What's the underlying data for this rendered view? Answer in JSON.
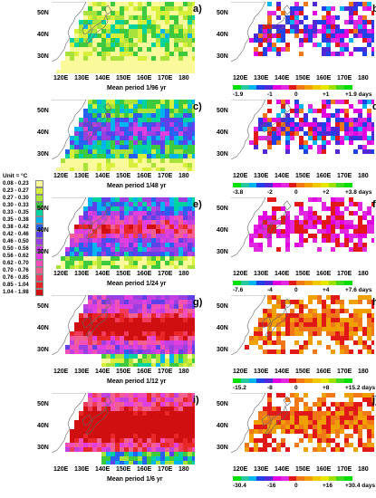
{
  "legend": {
    "title": "Unit = °C",
    "items": [
      {
        "label": "0.08 - 0.23",
        "color": "#fafa9a"
      },
      {
        "label": "0.23 - 0.27",
        "color": "#d8f03c"
      },
      {
        "label": "0.27 - 0.30",
        "color": "#a8e23a"
      },
      {
        "label": "0.30 - 0.33",
        "color": "#3ec93e"
      },
      {
        "label": "0.33 - 0.35",
        "color": "#00d2a0"
      },
      {
        "label": "0.35 - 0.38",
        "color": "#00b4f0"
      },
      {
        "label": "0.38 - 0.42",
        "color": "#2860f0"
      },
      {
        "label": "0.42 - 0.46",
        "color": "#6040e8"
      },
      {
        "label": "0.46 - 0.50",
        "color": "#9a40e0"
      },
      {
        "label": "0.50 - 0.56",
        "color": "#c040e0"
      },
      {
        "label": "0.56 - 0.62",
        "color": "#e040e0"
      },
      {
        "label": "0.62 - 0.70",
        "color": "#f050b8"
      },
      {
        "label": "0.70 - 0.76",
        "color": "#f06090"
      },
      {
        "label": "0.76 - 0.85",
        "color": "#f03c5a"
      },
      {
        "label": "0.85 - 1.04",
        "color": "#e82828"
      },
      {
        "label": "1.04 - 1.98",
        "color": "#d01010"
      }
    ]
  },
  "axes": {
    "y_ticks": [
      "50N",
      "40N",
      "30N"
    ],
    "x_ticks": [
      "120E",
      "130E",
      "140E",
      "150E",
      "160E",
      "170E",
      "180"
    ]
  },
  "phase_colors": [
    "#00e000",
    "#28c8a0",
    "#00b4f0",
    "#2040e8",
    "#5028d8",
    "#e000e0",
    "#e028e0",
    "#e01818",
    "#f07818",
    "#f0a000",
    "#f0c800",
    "#e6e600",
    "#a0e000",
    "#40d820",
    "#00e000"
  ],
  "rows": [
    {
      "left_label": "a)",
      "right_label": "b)",
      "mean_period": "Mean period 1/96 yr",
      "bar_ticks": [
        "-1.9",
        "-1",
        "0",
        "+1",
        "+1.9 days"
      ]
    },
    {
      "left_label": "c)",
      "right_label": "d)",
      "mean_period": "Mean period 1/48 yr",
      "bar_ticks": [
        "-3.8",
        "-2",
        "0",
        "+2",
        "+3.8 days"
      ]
    },
    {
      "left_label": "e)",
      "right_label": "f)",
      "mean_period": "Mean period 1/24 yr",
      "bar_ticks": [
        "-7.6",
        "-4",
        "0",
        "+4",
        "+7.6 days"
      ]
    },
    {
      "left_label": "g)",
      "right_label": "h)",
      "mean_period": "Mean period 1/12 yr",
      "bar_ticks": [
        "-15.2",
        "-8",
        "0",
        "+8",
        "+15.2 days"
      ]
    },
    {
      "left_label": "i)",
      "right_label": "j)",
      "mean_period": "Mean period 1/6 yr",
      "bar_ticks": [
        "-30.4",
        "-16",
        "0",
        "+16",
        "+30.4 days"
      ]
    }
  ]
}
